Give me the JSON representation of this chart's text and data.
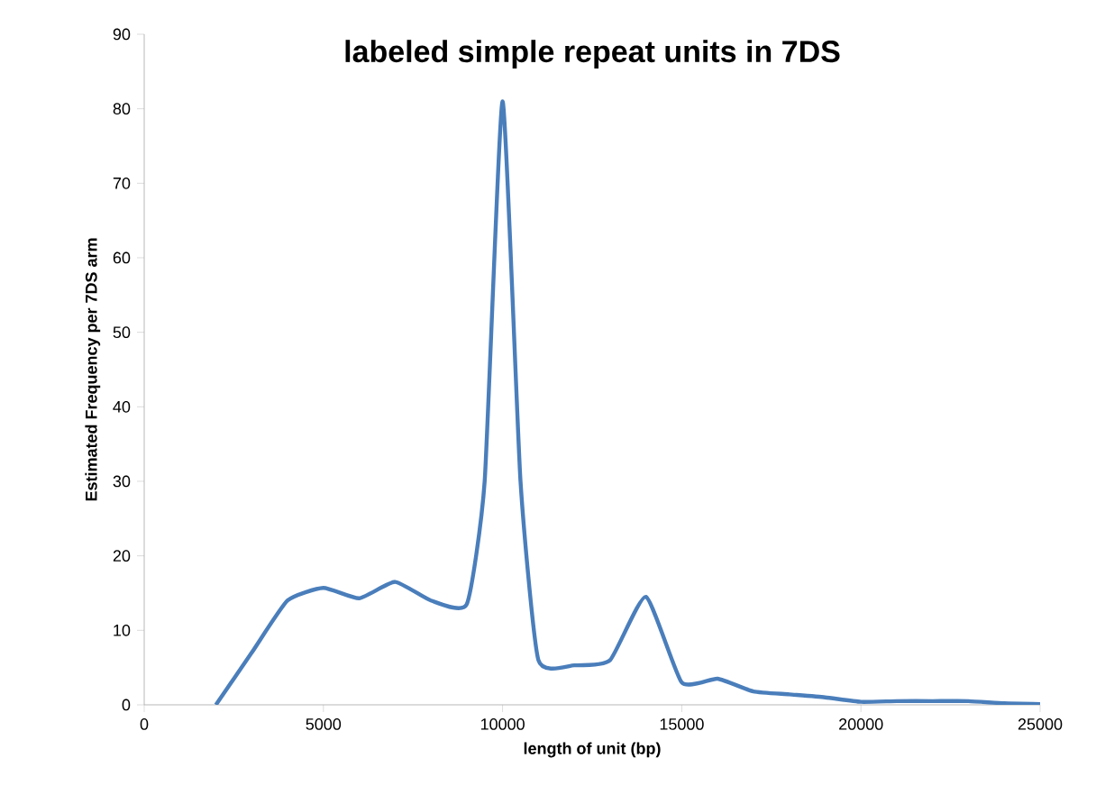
{
  "chart_data": {
    "type": "line",
    "title": "labeled simple repeat units in 7DS",
    "xlabel": "length of unit (bp)",
    "ylabel": "Estimated Frequency per 7DS arm",
    "x": [
      2000,
      3000,
      4000,
      5000,
      6000,
      7000,
      8000,
      9000,
      9500,
      10000,
      10500,
      11000,
      12000,
      13000,
      14000,
      15000,
      16000,
      17000,
      18000,
      19000,
      20000,
      21000,
      22000,
      23000,
      24000,
      25000
    ],
    "series": [
      {
        "color": "#4a7ebb",
        "values": [
          0,
          7,
          14,
          15.7,
          14.3,
          16.5,
          14,
          13.5,
          30,
          81,
          30,
          6,
          5.3,
          6,
          14.5,
          3,
          3.5,
          1.8,
          1.4,
          1,
          0.4,
          0.5,
          0.5,
          0.5,
          0.2,
          0.1
        ]
      }
    ],
    "xlim": [
      0,
      25000
    ],
    "ylim": [
      0,
      90
    ],
    "xticks": [
      0,
      5000,
      10000,
      15000,
      20000,
      25000
    ],
    "yticks": [
      0,
      10,
      20,
      30,
      40,
      50,
      60,
      70,
      80,
      90
    ],
    "grid": false,
    "marker": "none",
    "line_style": "solid"
  }
}
